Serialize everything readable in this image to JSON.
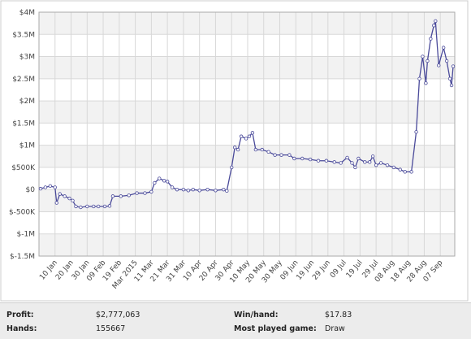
{
  "chart_data": {
    "type": "line",
    "x": [
      1,
      4,
      7,
      10,
      11,
      13,
      16,
      19,
      21,
      23,
      26,
      30,
      34,
      37,
      41,
      44,
      46,
      51,
      56,
      61,
      66,
      70,
      72,
      75,
      78,
      80,
      83,
      86,
      90,
      93,
      96,
      100,
      105,
      110,
      115,
      117,
      120,
      122,
      124,
      126,
      129,
      131,
      133,
      135,
      139,
      143,
      147,
      151,
      156,
      159,
      164,
      169,
      174,
      179,
      184,
      188,
      192,
      195,
      197,
      199,
      203,
      206,
      208,
      210,
      213,
      217,
      221,
      225,
      228,
      232,
      235,
      237,
      239,
      241,
      242,
      244,
      246,
      247,
      249,
      252,
      254,
      256,
      257,
      258
    ],
    "series": [
      {
        "color": "#4a4a9a",
        "values": [
          20000,
          50000,
          80000,
          50000,
          -300000,
          -100000,
          -150000,
          -200000,
          -250000,
          -380000,
          -400000,
          -380000,
          -380000,
          -380000,
          -380000,
          -370000,
          -150000,
          -150000,
          -130000,
          -80000,
          -80000,
          -50000,
          150000,
          250000,
          200000,
          180000,
          50000,
          0,
          0,
          -20000,
          0,
          -20000,
          0,
          -20000,
          0,
          -30000,
          500000,
          950000,
          900000,
          1200000,
          1150000,
          1200000,
          1280000,
          900000,
          900000,
          850000,
          780000,
          780000,
          780000,
          700000,
          700000,
          680000,
          650000,
          650000,
          620000,
          600000,
          720000,
          600000,
          500000,
          700000,
          620000,
          620000,
          750000,
          550000,
          600000,
          550000,
          500000,
          450000,
          400000,
          400000,
          1300000,
          2500000,
          3000000,
          2400000,
          2900000,
          3400000,
          3700000,
          3800000,
          2800000,
          3200000,
          2900000,
          2500000,
          2350000,
          2780000
        ]
      }
    ],
    "xlim": [
      0,
      259
    ],
    "xticks": [
      {
        "value": 10,
        "label": "10 Jan"
      },
      {
        "value": 20,
        "label": "20 Jan"
      },
      {
        "value": 30,
        "label": "30 Jan"
      },
      {
        "value": 40,
        "label": "09 Feb"
      },
      {
        "value": 50,
        "label": "19 Feb"
      },
      {
        "value": 60,
        "label": "Mar 2015"
      },
      {
        "value": 70,
        "label": "11 Mar"
      },
      {
        "value": 80,
        "label": "21 Mar"
      },
      {
        "value": 90,
        "label": "31 Mar"
      },
      {
        "value": 100,
        "label": "10 Apr"
      },
      {
        "value": 110,
        "label": "20 Apr"
      },
      {
        "value": 120,
        "label": "30 Apr"
      },
      {
        "value": 130,
        "label": "10 May"
      },
      {
        "value": 140,
        "label": "20 May"
      },
      {
        "value": 150,
        "label": "30 May"
      },
      {
        "value": 160,
        "label": "09 Jun"
      },
      {
        "value": 170,
        "label": "19 Jun"
      },
      {
        "value": 180,
        "label": "29 Jun"
      },
      {
        "value": 190,
        "label": "09 Jul"
      },
      {
        "value": 200,
        "label": "19 Jul"
      },
      {
        "value": 210,
        "label": "29 Jul"
      },
      {
        "value": 220,
        "label": "08 Aug"
      },
      {
        "value": 230,
        "label": "18 Aug"
      },
      {
        "value": 240,
        "label": "28 Aug"
      },
      {
        "value": 250,
        "label": "07 Sep"
      }
    ],
    "ylim": [
      -1500000,
      4000000
    ],
    "yticks": [
      {
        "value": -1500000,
        "label": "$-1.5M"
      },
      {
        "value": -1000000,
        "label": "$-1M"
      },
      {
        "value": -500000,
        "label": "$-500K"
      },
      {
        "value": 0,
        "label": "$0"
      },
      {
        "value": 500000,
        "label": "$500K"
      },
      {
        "value": 1000000,
        "label": "$1M"
      },
      {
        "value": 1500000,
        "label": "$1.5M"
      },
      {
        "value": 2000000,
        "label": "$2M"
      },
      {
        "value": 2500000,
        "label": "$2.5M"
      },
      {
        "value": 3000000,
        "label": "$3M"
      },
      {
        "value": 3500000,
        "label": "$3.5M"
      },
      {
        "value": 4000000,
        "label": "$4M"
      }
    ],
    "grid": true
  },
  "stats": {
    "rows": [
      [
        "Profit:",
        "$2,777,063",
        "Win/hand:",
        "$17.83"
      ],
      [
        "Hands:",
        "155667",
        "Most played game:",
        "Draw"
      ]
    ]
  }
}
